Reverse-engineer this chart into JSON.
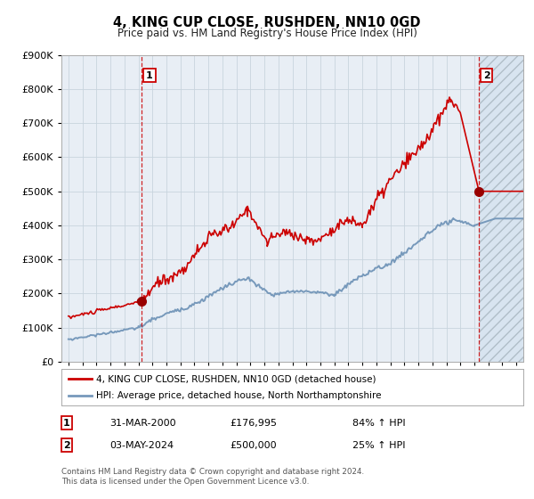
{
  "title": "4, KING CUP CLOSE, RUSHDEN, NN10 0GD",
  "subtitle": "Price paid vs. HM Land Registry's House Price Index (HPI)",
  "legend_line1": "4, KING CUP CLOSE, RUSHDEN, NN10 0GD (detached house)",
  "legend_line2": "HPI: Average price, detached house, North Northamptonshire",
  "annotation1_date": "31-MAR-2000",
  "annotation1_price": "£176,995",
  "annotation1_hpi": "84% ↑ HPI",
  "annotation2_date": "03-MAY-2024",
  "annotation2_price": "£500,000",
  "annotation2_hpi": "25% ↑ HPI",
  "footer": "Contains HM Land Registry data © Crown copyright and database right 2024.\nThis data is licensed under the Open Government Licence v3.0.",
  "red_color": "#cc0000",
  "blue_color": "#7799bb",
  "bg_color": "#e8eef5",
  "grid_color": "#d0d8e0",
  "ylim": [
    0,
    900000
  ],
  "yticks": [
    0,
    100000,
    200000,
    300000,
    400000,
    500000,
    600000,
    700000,
    800000,
    900000
  ],
  "sale1_x": 2000.25,
  "sale1_y": 176995,
  "sale2_x": 2024.33,
  "sale2_y": 500000,
  "xmin": 1994.5,
  "xmax": 2027.5,
  "vline1_x": 2000.25,
  "vline2_x": 2024.33
}
